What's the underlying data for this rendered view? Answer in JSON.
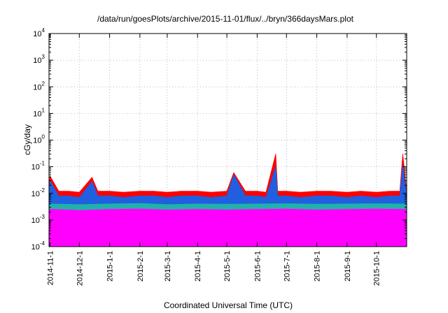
{
  "chart_data": {
    "type": "area",
    "title": "/data/run/goesPlots/archive/2015-11-01/flux/../bryn/366daysMars.plot",
    "xlabel": "Coordinated Universal Time (UTC)",
    "ylabel": "cGy/day",
    "yscale": "log",
    "ylim": [
      0.0001,
      10000
    ],
    "y_ticks": [
      {
        "base": "10",
        "exp": "-4",
        "value": 0.0001
      },
      {
        "base": "10",
        "exp": "-3",
        "value": 0.001
      },
      {
        "base": "10",
        "exp": "-2",
        "value": 0.01
      },
      {
        "base": "10",
        "exp": "-1",
        "value": 0.1
      },
      {
        "base": "10",
        "exp": "0",
        "value": 1
      },
      {
        "base": "10",
        "exp": "1",
        "value": 10
      },
      {
        "base": "10",
        "exp": "2",
        "value": 100
      },
      {
        "base": "10",
        "exp": "3",
        "value": 1000
      },
      {
        "base": "10",
        "exp": "4",
        "value": 10000
      }
    ],
    "xlim": [
      "2014-10-31",
      "2015-11-01"
    ],
    "x_ticks": [
      "2014-11-1",
      "2014-12-1",
      "2015-1-1",
      "2015-2-1",
      "2015-3-1",
      "2015-4-1",
      "2015-5-1",
      "2015-6-1",
      "2015-7-1",
      "2015-8-1",
      "2015-9-1",
      "2015-10-1"
    ],
    "x_tick_dates": [
      "2014-11-01",
      "2014-12-01",
      "2015-01-01",
      "2015-02-01",
      "2015-03-01",
      "2015-04-01",
      "2015-05-01",
      "2015-06-01",
      "2015-07-01",
      "2015-08-01",
      "2015-09-01",
      "2015-10-01"
    ],
    "grid": true,
    "series": [
      {
        "color": "#ff0000",
        "x": [
          "2014-10-31",
          "2014-11-01",
          "2014-11-10",
          "2014-11-20",
          "2014-12-01",
          "2014-12-14",
          "2014-12-20",
          "2015-01-01",
          "2015-01-15",
          "2015-02-01",
          "2015-02-15",
          "2015-03-01",
          "2015-03-15",
          "2015-04-01",
          "2015-04-15",
          "2015-05-01",
          "2015-05-08",
          "2015-05-20",
          "2015-06-01",
          "2015-06-10",
          "2015-06-20",
          "2015-06-22",
          "2015-07-01",
          "2015-07-15",
          "2015-08-01",
          "2015-08-15",
          "2015-09-01",
          "2015-09-15",
          "2015-10-01",
          "2015-10-15",
          "2015-10-25",
          "2015-10-28",
          "2015-11-01"
        ],
        "values": [
          0.012,
          0.045,
          0.012,
          0.012,
          0.011,
          0.04,
          0.012,
          0.012,
          0.011,
          0.012,
          0.012,
          0.011,
          0.012,
          0.012,
          0.011,
          0.012,
          0.06,
          0.012,
          0.012,
          0.011,
          0.3,
          0.012,
          0.012,
          0.011,
          0.012,
          0.012,
          0.011,
          0.012,
          0.011,
          0.012,
          0.012,
          0.3,
          0.012
        ]
      },
      {
        "color": "#1f5fe0",
        "x": [
          "2014-10-31",
          "2014-11-01",
          "2014-11-10",
          "2014-11-20",
          "2014-12-01",
          "2014-12-14",
          "2014-12-20",
          "2015-01-01",
          "2015-01-15",
          "2015-02-01",
          "2015-02-15",
          "2015-03-01",
          "2015-03-15",
          "2015-04-01",
          "2015-04-15",
          "2015-05-01",
          "2015-05-08",
          "2015-05-20",
          "2015-06-01",
          "2015-06-10",
          "2015-06-20",
          "2015-06-22",
          "2015-07-01",
          "2015-07-15",
          "2015-08-01",
          "2015-08-15",
          "2015-09-01",
          "2015-09-15",
          "2015-10-01",
          "2015-10-15",
          "2015-10-25",
          "2015-10-28",
          "2015-11-01"
        ],
        "values": [
          0.008,
          0.03,
          0.008,
          0.008,
          0.007,
          0.028,
          0.008,
          0.008,
          0.007,
          0.008,
          0.008,
          0.007,
          0.008,
          0.008,
          0.007,
          0.008,
          0.05,
          0.008,
          0.008,
          0.007,
          0.1,
          0.008,
          0.008,
          0.007,
          0.008,
          0.008,
          0.007,
          0.008,
          0.007,
          0.008,
          0.008,
          0.12,
          0.008
        ]
      },
      {
        "color": "#20b2aa",
        "x": [
          "2014-10-31",
          "2014-12-01",
          "2015-01-01",
          "2015-02-01",
          "2015-03-01",
          "2015-04-01",
          "2015-05-01",
          "2015-06-01",
          "2015-07-01",
          "2015-08-01",
          "2015-09-01",
          "2015-10-01",
          "2015-11-01"
        ],
        "values": [
          0.004,
          0.0038,
          0.004,
          0.0042,
          0.0038,
          0.004,
          0.0039,
          0.004,
          0.0041,
          0.0039,
          0.004,
          0.0041,
          0.004
        ]
      },
      {
        "color": "#ff00ff",
        "x": [
          "2014-10-31",
          "2014-11-20",
          "2014-12-01",
          "2015-01-01",
          "2015-02-01",
          "2015-03-01",
          "2015-04-01",
          "2015-05-01",
          "2015-06-01",
          "2015-07-01",
          "2015-08-01",
          "2015-09-01",
          "2015-10-01",
          "2015-11-01"
        ],
        "values": [
          0.0025,
          0.0024,
          0.0023,
          0.0025,
          0.0026,
          0.0024,
          0.0025,
          0.0024,
          0.0025,
          0.0026,
          0.0024,
          0.0025,
          0.0026,
          0.0025
        ]
      }
    ]
  }
}
